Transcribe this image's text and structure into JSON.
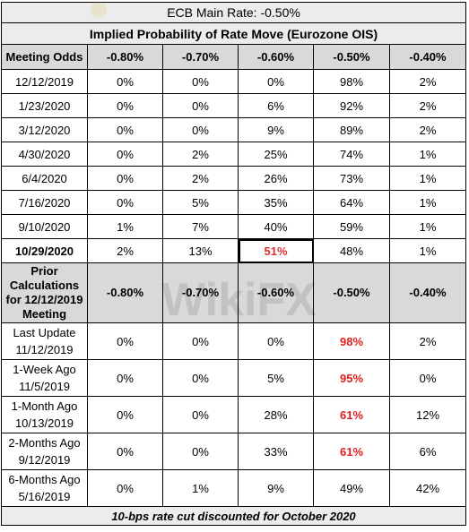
{
  "header": {
    "main_rate": "ECB Main Rate: -0.50%",
    "subtitle": "Implied Probability of Rate Move (Eurozone OIS)"
  },
  "meeting_table": {
    "label_header": "Meeting Odds",
    "rate_headers": [
      "-0.80%",
      "-0.70%",
      "-0.60%",
      "-0.50%",
      "-0.40%"
    ],
    "rows": [
      {
        "date": "12/12/2019",
        "values": [
          "0%",
          "0%",
          "0%",
          "98%",
          "2%"
        ]
      },
      {
        "date": "1/23/2020",
        "values": [
          "0%",
          "0%",
          "6%",
          "92%",
          "2%"
        ]
      },
      {
        "date": "3/12/2020",
        "values": [
          "0%",
          "0%",
          "9%",
          "89%",
          "2%"
        ]
      },
      {
        "date": "4/30/2020",
        "values": [
          "0%",
          "2%",
          "25%",
          "74%",
          "1%"
        ]
      },
      {
        "date": "6/4/2020",
        "values": [
          "0%",
          "2%",
          "26%",
          "73%",
          "1%"
        ]
      },
      {
        "date": "7/16/2020",
        "values": [
          "0%",
          "5%",
          "35%",
          "64%",
          "1%"
        ]
      },
      {
        "date": "9/10/2020",
        "values": [
          "1%",
          "7%",
          "40%",
          "59%",
          "1%"
        ]
      },
      {
        "date": "10/29/2020",
        "values": [
          "2%",
          "13%",
          "51%",
          "48%",
          "1%"
        ]
      }
    ]
  },
  "prior_table": {
    "label_header_lines": [
      "Prior",
      "Calculations",
      "for 12/12/2019",
      "Meeting"
    ],
    "rate_headers": [
      "-0.80%",
      "-0.70%",
      "-0.60%",
      "-0.50%",
      "-0.40%"
    ],
    "rows": [
      {
        "label_lines": [
          "Last Update",
          "11/12/2019"
        ],
        "values": [
          "0%",
          "0%",
          "0%",
          "98%",
          "2%"
        ]
      },
      {
        "label_lines": [
          "1-Week Ago",
          "11/5/2019"
        ],
        "values": [
          "0%",
          "0%",
          "5%",
          "95%",
          "0%"
        ]
      },
      {
        "label_lines": [
          "1-Month Ago",
          "10/13/2019"
        ],
        "values": [
          "0%",
          "0%",
          "28%",
          "61%",
          "12%"
        ]
      },
      {
        "label_lines": [
          "2-Months Ago",
          "9/12/2019"
        ],
        "values": [
          "0%",
          "0%",
          "33%",
          "61%",
          "6%"
        ]
      },
      {
        "label_lines": [
          "6-Months Ago",
          "5/16/2019"
        ],
        "values": [
          "0%",
          "1%",
          "9%",
          "49%",
          "42%"
        ]
      }
    ]
  },
  "footer": "10-bps rate cut discounted for October 2020",
  "watermark_text": "WikiFX",
  "colors": {
    "highlight_red": "#e02020",
    "header_grey": "#d9d9d9",
    "title_grey": "#ececec"
  }
}
